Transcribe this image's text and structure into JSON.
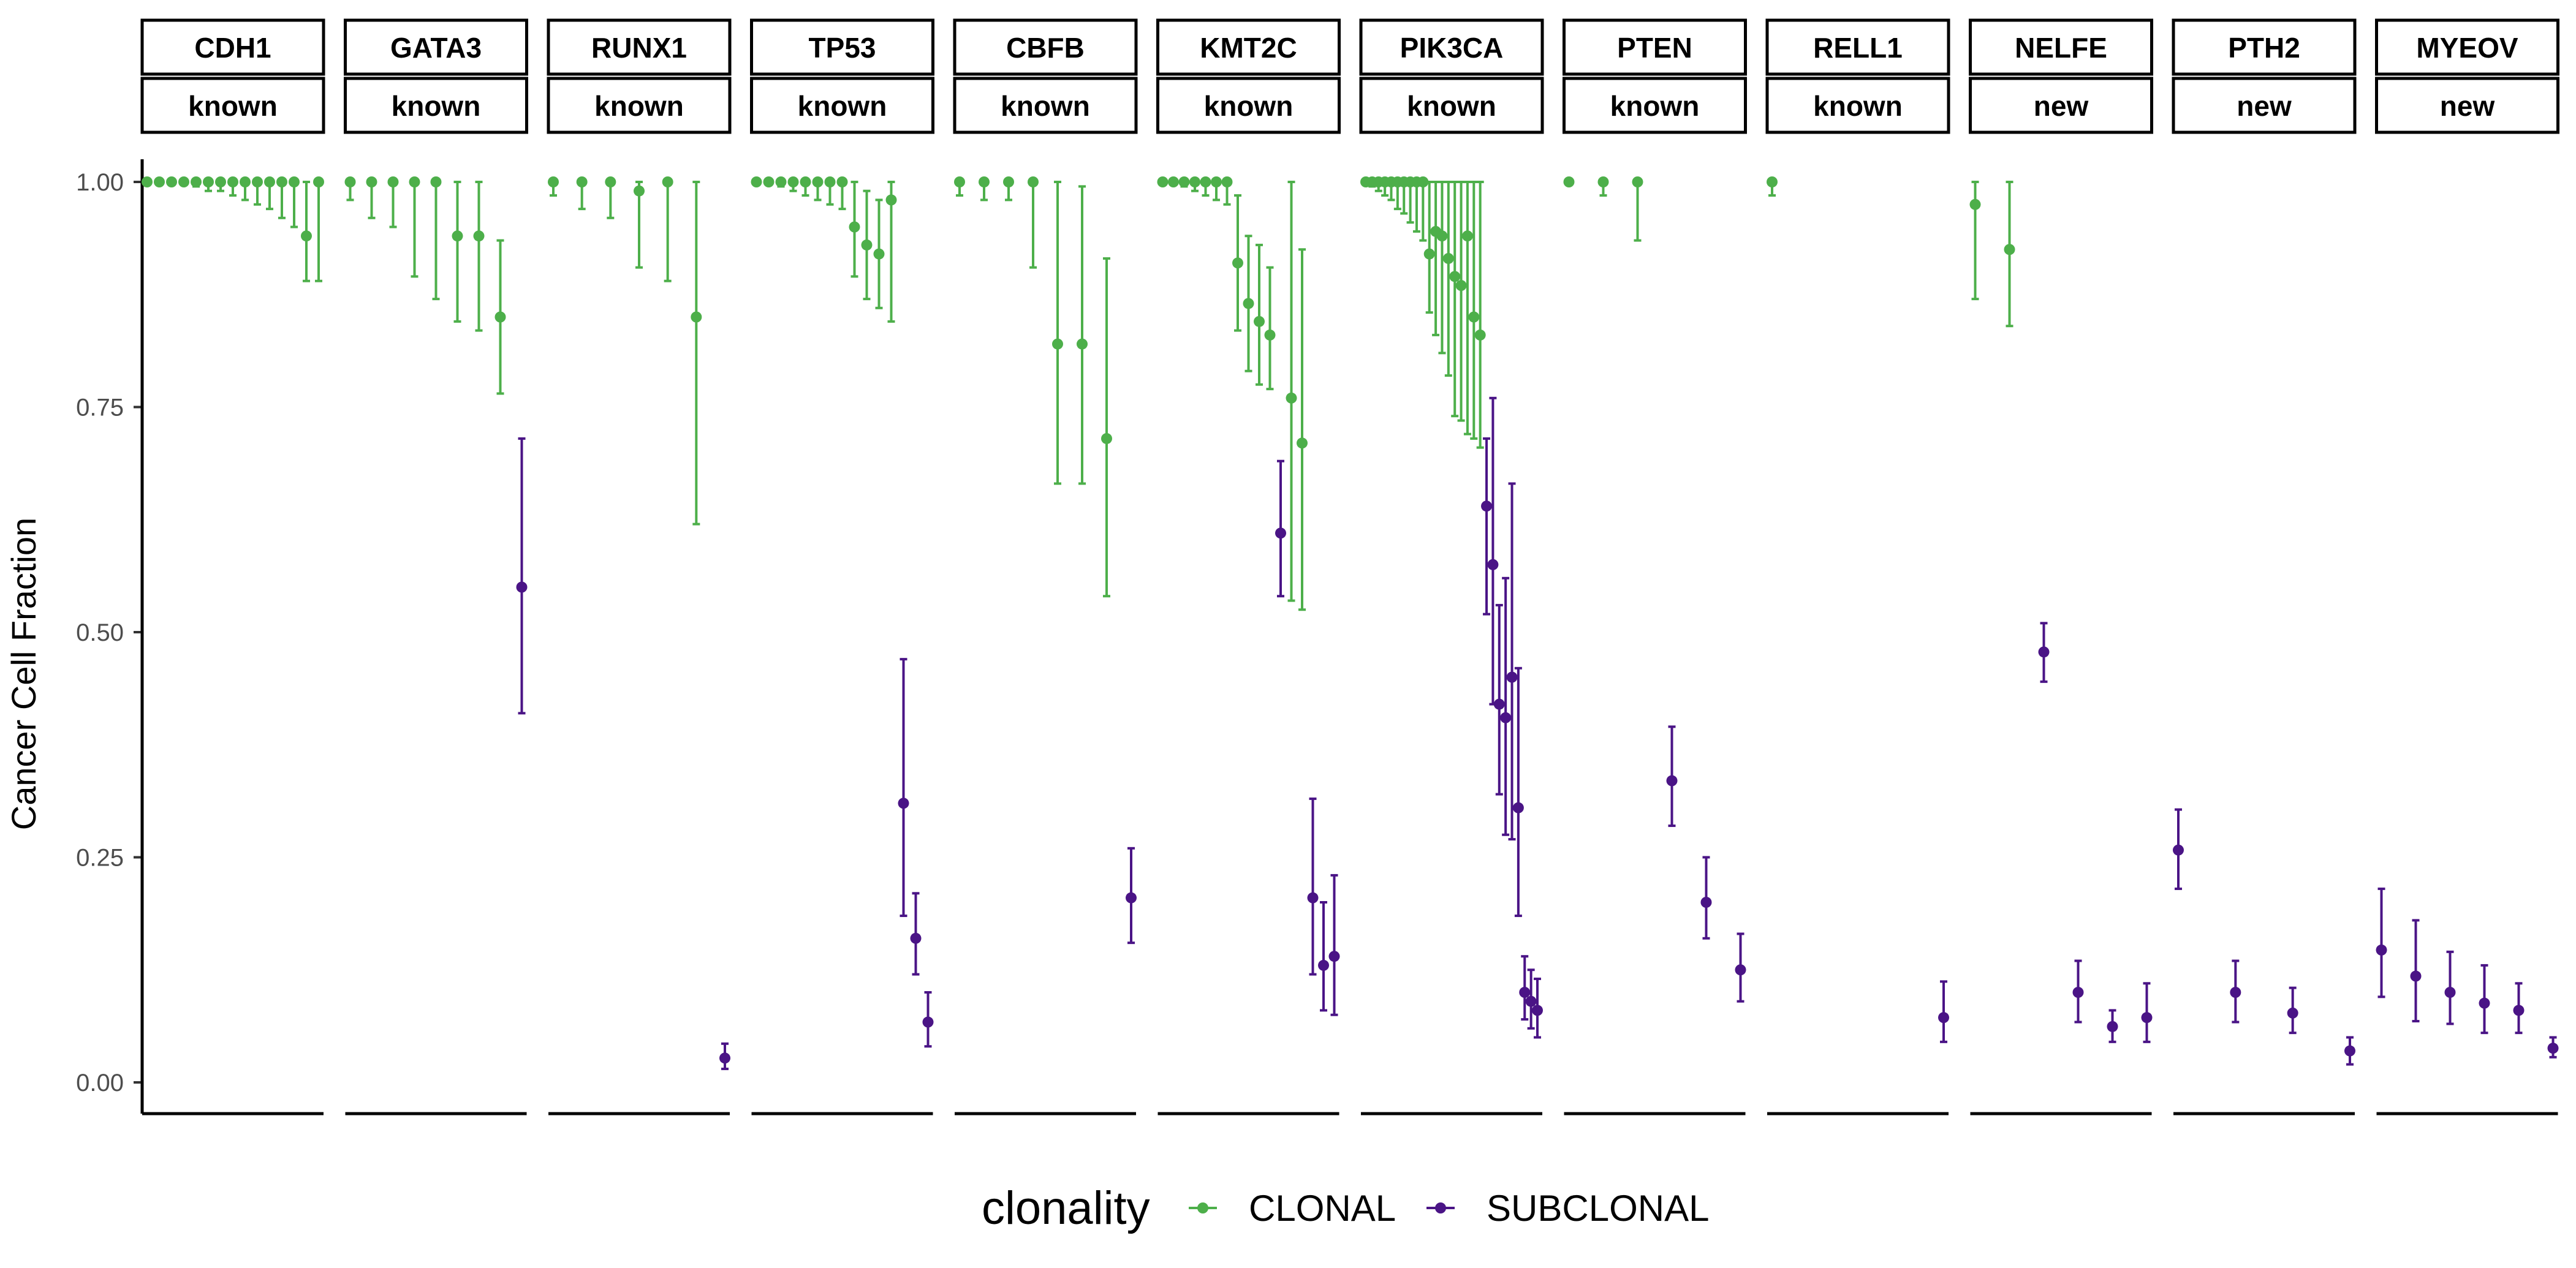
{
  "chart_data": {
    "type": "scatter",
    "ylabel": "Cancer Cell Fraction",
    "xlabel": "",
    "ylim": [
      0,
      1
    ],
    "yticks": [
      0,
      0.25,
      0.5,
      0.75,
      1.0
    ],
    "ytick_labels": [
      "0.00",
      "0.25",
      "0.50",
      "0.75",
      "1.00"
    ],
    "grid": false,
    "legend": {
      "title": "clonality",
      "placement": "bottom",
      "entries": [
        {
          "name": "CLONAL",
          "color": "#4daf4a"
        },
        {
          "name": "SUBCLONAL",
          "color": "#4a1486"
        }
      ]
    },
    "colors": {
      "CLONAL": "#4daf4a",
      "SUBCLONAL": "#4a1486"
    },
    "facets": [
      {
        "gene": "CDH1",
        "status": "known",
        "points": [
          {
            "y": 1.0,
            "lo": 1.0,
            "hi": 1.0,
            "c": "CLONAL"
          },
          {
            "y": 1.0,
            "lo": 1.0,
            "hi": 1.0,
            "c": "CLONAL"
          },
          {
            "y": 1.0,
            "lo": 1.0,
            "hi": 1.0,
            "c": "CLONAL"
          },
          {
            "y": 1.0,
            "lo": 1.0,
            "hi": 1.0,
            "c": "CLONAL"
          },
          {
            "y": 1.0,
            "lo": 0.995,
            "hi": 1.0,
            "c": "CLONAL"
          },
          {
            "y": 1.0,
            "lo": 0.99,
            "hi": 1.0,
            "c": "CLONAL"
          },
          {
            "y": 1.0,
            "lo": 0.99,
            "hi": 1.0,
            "c": "CLONAL"
          },
          {
            "y": 1.0,
            "lo": 0.985,
            "hi": 1.0,
            "c": "CLONAL"
          },
          {
            "y": 1.0,
            "lo": 0.98,
            "hi": 1.0,
            "c": "CLONAL"
          },
          {
            "y": 1.0,
            "lo": 0.975,
            "hi": 1.0,
            "c": "CLONAL"
          },
          {
            "y": 1.0,
            "lo": 0.97,
            "hi": 1.0,
            "c": "CLONAL"
          },
          {
            "y": 1.0,
            "lo": 0.96,
            "hi": 1.0,
            "c": "CLONAL"
          },
          {
            "y": 1.0,
            "lo": 0.95,
            "hi": 1.0,
            "c": "CLONAL"
          },
          {
            "y": 0.94,
            "lo": 0.89,
            "hi": 1.0,
            "c": "CLONAL"
          },
          {
            "y": 1.0,
            "lo": 0.89,
            "hi": 1.0,
            "c": "CLONAL"
          }
        ]
      },
      {
        "gene": "GATA3",
        "status": "known",
        "points": [
          {
            "y": 1.0,
            "lo": 0.98,
            "hi": 1.0,
            "c": "CLONAL"
          },
          {
            "y": 1.0,
            "lo": 0.96,
            "hi": 1.0,
            "c": "CLONAL"
          },
          {
            "y": 1.0,
            "lo": 0.95,
            "hi": 1.0,
            "c": "CLONAL"
          },
          {
            "y": 1.0,
            "lo": 0.895,
            "hi": 1.0,
            "c": "CLONAL"
          },
          {
            "y": 1.0,
            "lo": 0.87,
            "hi": 1.0,
            "c": "CLONAL"
          },
          {
            "y": 0.94,
            "lo": 0.845,
            "hi": 1.0,
            "c": "CLONAL"
          },
          {
            "y": 0.94,
            "lo": 0.835,
            "hi": 1.0,
            "c": "CLONAL"
          },
          {
            "y": 0.85,
            "lo": 0.765,
            "hi": 0.935,
            "c": "CLONAL"
          },
          {
            "y": 0.55,
            "lo": 0.41,
            "hi": 0.715,
            "c": "SUBCLONAL"
          }
        ]
      },
      {
        "gene": "RUNX1",
        "status": "known",
        "points": [
          {
            "y": 1.0,
            "lo": 0.985,
            "hi": 1.0,
            "c": "CLONAL"
          },
          {
            "y": 1.0,
            "lo": 0.97,
            "hi": 1.0,
            "c": "CLONAL"
          },
          {
            "y": 1.0,
            "lo": 0.96,
            "hi": 1.0,
            "c": "CLONAL"
          },
          {
            "y": 0.99,
            "lo": 0.905,
            "hi": 1.0,
            "c": "CLONAL"
          },
          {
            "y": 1.0,
            "lo": 0.89,
            "hi": 1.0,
            "c": "CLONAL"
          },
          {
            "y": 0.85,
            "lo": 0.62,
            "hi": 1.0,
            "c": "CLONAL"
          },
          {
            "y": 0.027,
            "lo": 0.015,
            "hi": 0.043,
            "c": "SUBCLONAL"
          }
        ]
      },
      {
        "gene": "TP53",
        "status": "known",
        "points": [
          {
            "y": 1.0,
            "lo": 1.0,
            "hi": 1.0,
            "c": "CLONAL"
          },
          {
            "y": 1.0,
            "lo": 1.0,
            "hi": 1.0,
            "c": "CLONAL"
          },
          {
            "y": 1.0,
            "lo": 0.995,
            "hi": 1.0,
            "c": "CLONAL"
          },
          {
            "y": 1.0,
            "lo": 0.99,
            "hi": 1.0,
            "c": "CLONAL"
          },
          {
            "y": 1.0,
            "lo": 0.985,
            "hi": 1.0,
            "c": "CLONAL"
          },
          {
            "y": 1.0,
            "lo": 0.98,
            "hi": 1.0,
            "c": "CLONAL"
          },
          {
            "y": 1.0,
            "lo": 0.975,
            "hi": 1.0,
            "c": "CLONAL"
          },
          {
            "y": 1.0,
            "lo": 0.97,
            "hi": 1.0,
            "c": "CLONAL"
          },
          {
            "y": 0.95,
            "lo": 0.895,
            "hi": 1.0,
            "c": "CLONAL"
          },
          {
            "y": 0.93,
            "lo": 0.87,
            "hi": 0.99,
            "c": "CLONAL"
          },
          {
            "y": 0.92,
            "lo": 0.86,
            "hi": 0.98,
            "c": "CLONAL"
          },
          {
            "y": 0.98,
            "lo": 0.845,
            "hi": 1.0,
            "c": "CLONAL"
          },
          {
            "y": 0.31,
            "lo": 0.185,
            "hi": 0.47,
            "c": "SUBCLONAL"
          },
          {
            "y": 0.16,
            "lo": 0.12,
            "hi": 0.21,
            "c": "SUBCLONAL"
          },
          {
            "y": 0.067,
            "lo": 0.04,
            "hi": 0.1,
            "c": "SUBCLONAL"
          }
        ]
      },
      {
        "gene": "CBFB",
        "status": "known",
        "points": [
          {
            "y": 1.0,
            "lo": 0.985,
            "hi": 1.0,
            "c": "CLONAL"
          },
          {
            "y": 1.0,
            "lo": 0.98,
            "hi": 1.0,
            "c": "CLONAL"
          },
          {
            "y": 1.0,
            "lo": 0.98,
            "hi": 1.0,
            "c": "CLONAL"
          },
          {
            "y": 1.0,
            "lo": 0.905,
            "hi": 1.0,
            "c": "CLONAL"
          },
          {
            "y": 0.82,
            "lo": 0.665,
            "hi": 1.0,
            "c": "CLONAL"
          },
          {
            "y": 0.82,
            "lo": 0.665,
            "hi": 0.995,
            "c": "CLONAL"
          },
          {
            "y": 0.715,
            "lo": 0.54,
            "hi": 0.915,
            "c": "CLONAL"
          },
          {
            "y": 0.205,
            "lo": 0.155,
            "hi": 0.26,
            "c": "SUBCLONAL"
          }
        ]
      },
      {
        "gene": "KMT2C",
        "status": "known",
        "points": [
          {
            "y": 1.0,
            "lo": 1.0,
            "hi": 1.0,
            "c": "CLONAL"
          },
          {
            "y": 1.0,
            "lo": 1.0,
            "hi": 1.0,
            "c": "CLONAL"
          },
          {
            "y": 1.0,
            "lo": 0.995,
            "hi": 1.0,
            "c": "CLONAL"
          },
          {
            "y": 1.0,
            "lo": 0.99,
            "hi": 1.0,
            "c": "CLONAL"
          },
          {
            "y": 1.0,
            "lo": 0.985,
            "hi": 1.0,
            "c": "CLONAL"
          },
          {
            "y": 1.0,
            "lo": 0.98,
            "hi": 1.0,
            "c": "CLONAL"
          },
          {
            "y": 1.0,
            "lo": 0.975,
            "hi": 1.0,
            "c": "CLONAL"
          },
          {
            "y": 0.91,
            "lo": 0.835,
            "hi": 0.985,
            "c": "CLONAL"
          },
          {
            "y": 0.865,
            "lo": 0.79,
            "hi": 0.94,
            "c": "CLONAL"
          },
          {
            "y": 0.845,
            "lo": 0.775,
            "hi": 0.93,
            "c": "CLONAL"
          },
          {
            "y": 0.83,
            "lo": 0.77,
            "hi": 0.905,
            "c": "CLONAL"
          },
          {
            "y": 0.61,
            "lo": 0.54,
            "hi": 0.69,
            "c": "SUBCLONAL"
          },
          {
            "y": 0.76,
            "lo": 0.535,
            "hi": 1.0,
            "c": "CLONAL"
          },
          {
            "y": 0.71,
            "lo": 0.525,
            "hi": 0.925,
            "c": "CLONAL"
          },
          {
            "y": 0.205,
            "lo": 0.12,
            "hi": 0.315,
            "c": "SUBCLONAL"
          },
          {
            "y": 0.13,
            "lo": 0.08,
            "hi": 0.2,
            "c": "SUBCLONAL"
          },
          {
            "y": 0.14,
            "lo": 0.075,
            "hi": 0.23,
            "c": "SUBCLONAL"
          }
        ]
      },
      {
        "gene": "PIK3CA",
        "status": "known",
        "points": [
          {
            "y": 1.0,
            "lo": 1.0,
            "hi": 1.0,
            "c": "CLONAL"
          },
          {
            "y": 1.0,
            "lo": 0.995,
            "hi": 1.0,
            "c": "CLONAL"
          },
          {
            "y": 1.0,
            "lo": 0.99,
            "hi": 1.0,
            "c": "CLONAL"
          },
          {
            "y": 1.0,
            "lo": 0.985,
            "hi": 1.0,
            "c": "CLONAL"
          },
          {
            "y": 1.0,
            "lo": 0.98,
            "hi": 1.0,
            "c": "CLONAL"
          },
          {
            "y": 1.0,
            "lo": 0.97,
            "hi": 1.0,
            "c": "CLONAL"
          },
          {
            "y": 1.0,
            "lo": 0.965,
            "hi": 1.0,
            "c": "CLONAL"
          },
          {
            "y": 1.0,
            "lo": 0.955,
            "hi": 1.0,
            "c": "CLONAL"
          },
          {
            "y": 1.0,
            "lo": 0.945,
            "hi": 1.0,
            "c": "CLONAL"
          },
          {
            "y": 1.0,
            "lo": 0.935,
            "hi": 1.0,
            "c": "CLONAL"
          },
          {
            "y": 0.92,
            "lo": 0.855,
            "hi": 1.0,
            "c": "CLONAL"
          },
          {
            "y": 0.945,
            "lo": 0.83,
            "hi": 1.0,
            "c": "CLONAL"
          },
          {
            "y": 0.94,
            "lo": 0.81,
            "hi": 1.0,
            "c": "CLONAL"
          },
          {
            "y": 0.915,
            "lo": 0.785,
            "hi": 1.0,
            "c": "CLONAL"
          },
          {
            "y": 0.895,
            "lo": 0.74,
            "hi": 1.0,
            "c": "CLONAL"
          },
          {
            "y": 0.885,
            "lo": 0.735,
            "hi": 1.0,
            "c": "CLONAL"
          },
          {
            "y": 0.94,
            "lo": 0.72,
            "hi": 1.0,
            "c": "CLONAL"
          },
          {
            "y": 0.85,
            "lo": 0.715,
            "hi": 1.0,
            "c": "CLONAL"
          },
          {
            "y": 0.83,
            "lo": 0.705,
            "hi": 1.0,
            "c": "CLONAL"
          },
          {
            "y": 0.64,
            "lo": 0.52,
            "hi": 0.715,
            "c": "SUBCLONAL"
          },
          {
            "y": 0.575,
            "lo": 0.42,
            "hi": 0.76,
            "c": "SUBCLONAL"
          },
          {
            "y": 0.42,
            "lo": 0.32,
            "hi": 0.53,
            "c": "SUBCLONAL"
          },
          {
            "y": 0.405,
            "lo": 0.275,
            "hi": 0.56,
            "c": "SUBCLONAL"
          },
          {
            "y": 0.45,
            "lo": 0.27,
            "hi": 0.665,
            "c": "SUBCLONAL"
          },
          {
            "y": 0.305,
            "lo": 0.185,
            "hi": 0.46,
            "c": "SUBCLONAL"
          },
          {
            "y": 0.1,
            "lo": 0.07,
            "hi": 0.14,
            "c": "SUBCLONAL"
          },
          {
            "y": 0.09,
            "lo": 0.06,
            "hi": 0.125,
            "c": "SUBCLONAL"
          },
          {
            "y": 0.08,
            "lo": 0.05,
            "hi": 0.115,
            "c": "SUBCLONAL"
          }
        ]
      },
      {
        "gene": "PTEN",
        "status": "known",
        "points": [
          {
            "y": 1.0,
            "lo": 1.0,
            "hi": 1.0,
            "c": "CLONAL"
          },
          {
            "y": 1.0,
            "lo": 0.985,
            "hi": 1.0,
            "c": "CLONAL"
          },
          {
            "y": 1.0,
            "lo": 0.935,
            "hi": 1.0,
            "c": "CLONAL"
          },
          {
            "y": 0.335,
            "lo": 0.285,
            "hi": 0.395,
            "c": "SUBCLONAL"
          },
          {
            "y": 0.2,
            "lo": 0.16,
            "hi": 0.25,
            "c": "SUBCLONAL"
          },
          {
            "y": 0.125,
            "lo": 0.09,
            "hi": 0.165,
            "c": "SUBCLONAL"
          }
        ]
      },
      {
        "gene": "RELL1",
        "status": "known",
        "points": [
          {
            "y": 1.0,
            "lo": 0.985,
            "hi": 1.0,
            "c": "CLONAL"
          },
          {
            "y": 0.072,
            "lo": 0.045,
            "hi": 0.112,
            "c": "SUBCLONAL"
          }
        ]
      },
      {
        "gene": "NELFE",
        "status": "new",
        "points": [
          {
            "y": 0.975,
            "lo": 0.87,
            "hi": 1.0,
            "c": "CLONAL"
          },
          {
            "y": 0.925,
            "lo": 0.84,
            "hi": 1.0,
            "c": "CLONAL"
          },
          {
            "y": 0.478,
            "lo": 0.445,
            "hi": 0.51,
            "c": "SUBCLONAL"
          },
          {
            "y": 0.1,
            "lo": 0.067,
            "hi": 0.135,
            "c": "SUBCLONAL"
          },
          {
            "y": 0.062,
            "lo": 0.045,
            "hi": 0.08,
            "c": "SUBCLONAL"
          },
          {
            "y": 0.072,
            "lo": 0.045,
            "hi": 0.11,
            "c": "SUBCLONAL"
          }
        ]
      },
      {
        "gene": "PTH2",
        "status": "new",
        "points": [
          {
            "y": 0.258,
            "lo": 0.215,
            "hi": 0.303,
            "c": "SUBCLONAL"
          },
          {
            "y": 0.1,
            "lo": 0.067,
            "hi": 0.135,
            "c": "SUBCLONAL"
          },
          {
            "y": 0.077,
            "lo": 0.055,
            "hi": 0.105,
            "c": "SUBCLONAL"
          },
          {
            "y": 0.035,
            "lo": 0.02,
            "hi": 0.05,
            "c": "SUBCLONAL"
          }
        ]
      },
      {
        "gene": "MYEOV",
        "status": "new",
        "points": [
          {
            "y": 0.147,
            "lo": 0.095,
            "hi": 0.215,
            "c": "SUBCLONAL"
          },
          {
            "y": 0.118,
            "lo": 0.068,
            "hi": 0.18,
            "c": "SUBCLONAL"
          },
          {
            "y": 0.1,
            "lo": 0.065,
            "hi": 0.145,
            "c": "SUBCLONAL"
          },
          {
            "y": 0.088,
            "lo": 0.055,
            "hi": 0.13,
            "c": "SUBCLONAL"
          },
          {
            "y": 0.08,
            "lo": 0.055,
            "hi": 0.11,
            "c": "SUBCLONAL"
          },
          {
            "y": 0.038,
            "lo": 0.028,
            "hi": 0.05,
            "c": "SUBCLONAL"
          }
        ]
      }
    ]
  }
}
